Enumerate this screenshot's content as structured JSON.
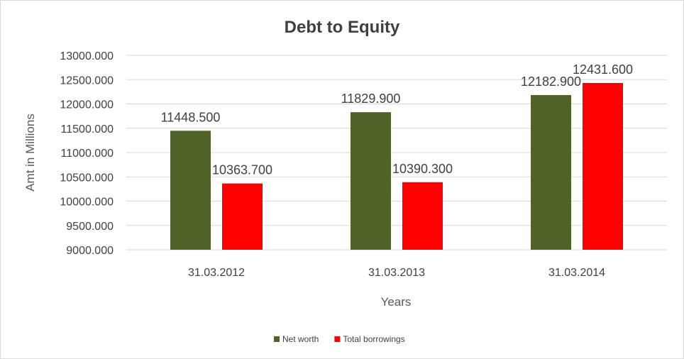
{
  "chart_data": {
    "type": "bar",
    "title": "Debt to Equity",
    "xlabel": "Years",
    "ylabel": "Amt in Millions",
    "categories": [
      "31.03.2012",
      "31.03.2013",
      "31.03.2014"
    ],
    "series": [
      {
        "name": "Net worth",
        "color": "#4f6228",
        "values": [
          11448.5,
          11829.9,
          12182.9
        ],
        "labels": [
          "11448.500",
          "11829.900",
          "12182.900"
        ]
      },
      {
        "name": "Total borrowings",
        "color": "#ff0000",
        "values": [
          10363.7,
          10390.3,
          12431.6
        ],
        "labels": [
          "10363.700",
          "10390.300",
          "12431.600"
        ]
      }
    ],
    "ylim": [
      9000,
      13000
    ],
    "yticks": [
      9000,
      9500,
      10000,
      10500,
      11000,
      11500,
      12000,
      12500,
      13000
    ],
    "ytick_labels": [
      "9000.000",
      "9500.000",
      "10000.000",
      "10500.000",
      "11000.000",
      "11500.000",
      "12000.000",
      "12500.000",
      "13000.000"
    ],
    "grid": true,
    "legend": "bottom"
  }
}
